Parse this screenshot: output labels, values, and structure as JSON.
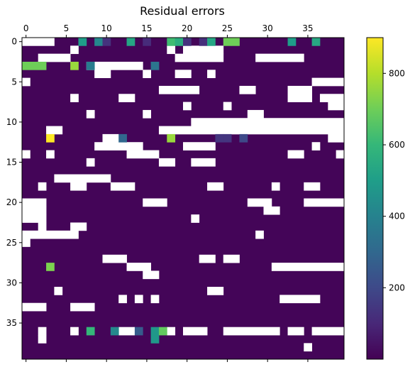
{
  "chart_data": {
    "type": "heatmap",
    "title": "Residual errors",
    "xlabel": "",
    "ylabel": "",
    "grid": false,
    "x_axis_position": "top",
    "xlim": [
      -0.5,
      39.5
    ],
    "ylim": [
      39.5,
      -0.5
    ],
    "x_ticks": [
      0,
      5,
      10,
      15,
      20,
      25,
      30,
      35
    ],
    "y_ticks": [
      0,
      5,
      10,
      15,
      20,
      25,
      30,
      35
    ],
    "colormap": "viridis",
    "colormap_stops": [
      "#440154",
      "#482878",
      "#3e4989",
      "#31688e",
      "#26828e",
      "#1f9e89",
      "#35b779",
      "#6ece58",
      "#b5de2b",
      "#fde725"
    ],
    "masked_color": "#ffffff",
    "vmin": 0,
    "vmax": 900,
    "colorbar_ticks": [
      200,
      400,
      600,
      800
    ],
    "background_value": 10,
    "nan_segments": [
      [
        0,
        0,
        3
      ],
      [
        1,
        6,
        6
      ],
      [
        1,
        18,
        18
      ],
      [
        1,
        20,
        24
      ],
      [
        2,
        2,
        5
      ],
      [
        2,
        19,
        24
      ],
      [
        2,
        29,
        34
      ],
      [
        3,
        8,
        14
      ],
      [
        4,
        9,
        10
      ],
      [
        4,
        15,
        15
      ],
      [
        4,
        19,
        20
      ],
      [
        4,
        23,
        23
      ],
      [
        5,
        0,
        0
      ],
      [
        5,
        36,
        39
      ],
      [
        6,
        17,
        21
      ],
      [
        6,
        27,
        28
      ],
      [
        6,
        33,
        35
      ],
      [
        7,
        6,
        6
      ],
      [
        7,
        12,
        13
      ],
      [
        7,
        33,
        35
      ],
      [
        7,
        37,
        39
      ],
      [
        8,
        20,
        20
      ],
      [
        8,
        25,
        25
      ],
      [
        8,
        38,
        39
      ],
      [
        9,
        8,
        8
      ],
      [
        9,
        15,
        15
      ],
      [
        9,
        28,
        29
      ],
      [
        10,
        21,
        39
      ],
      [
        11,
        3,
        4
      ],
      [
        11,
        17,
        39
      ],
      [
        12,
        10,
        11
      ],
      [
        12,
        38,
        39
      ],
      [
        13,
        9,
        14
      ],
      [
        13,
        20,
        23
      ],
      [
        13,
        36,
        36
      ],
      [
        14,
        0,
        0
      ],
      [
        14,
        3,
        3
      ],
      [
        14,
        13,
        16
      ],
      [
        14,
        33,
        34
      ],
      [
        14,
        39,
        39
      ],
      [
        15,
        8,
        8
      ],
      [
        15,
        17,
        18
      ],
      [
        15,
        21,
        23
      ],
      [
        17,
        4,
        10
      ],
      [
        18,
        2,
        2
      ],
      [
        18,
        6,
        7
      ],
      [
        18,
        11,
        13
      ],
      [
        18,
        23,
        24
      ],
      [
        18,
        31,
        31
      ],
      [
        18,
        35,
        36
      ],
      [
        20,
        0,
        2
      ],
      [
        20,
        15,
        17
      ],
      [
        20,
        28,
        30
      ],
      [
        20,
        35,
        39
      ],
      [
        21,
        0,
        2
      ],
      [
        21,
        30,
        31
      ],
      [
        22,
        0,
        2
      ],
      [
        22,
        21,
        21
      ],
      [
        23,
        2,
        2
      ],
      [
        23,
        6,
        7
      ],
      [
        24,
        0,
        6
      ],
      [
        24,
        29,
        29
      ],
      [
        25,
        0,
        0
      ],
      [
        27,
        10,
        12
      ],
      [
        27,
        22,
        23
      ],
      [
        27,
        25,
        26
      ],
      [
        28,
        13,
        15
      ],
      [
        28,
        31,
        39
      ],
      [
        29,
        15,
        16
      ],
      [
        31,
        4,
        4
      ],
      [
        31,
        23,
        24
      ],
      [
        32,
        12,
        12
      ],
      [
        32,
        14,
        14
      ],
      [
        32,
        16,
        16
      ],
      [
        32,
        32,
        36
      ],
      [
        33,
        0,
        2
      ],
      [
        33,
        6,
        8
      ],
      [
        36,
        2,
        2
      ],
      [
        36,
        6,
        6
      ],
      [
        36,
        12,
        13
      ],
      [
        36,
        18,
        18
      ],
      [
        36,
        20,
        22
      ],
      [
        36,
        25,
        31
      ],
      [
        36,
        33,
        34
      ],
      [
        36,
        36,
        39
      ],
      [
        37,
        2,
        2
      ],
      [
        38,
        35,
        35
      ]
    ],
    "highlighted_cells": [
      [
        0,
        7,
        500
      ],
      [
        0,
        9,
        420
      ],
      [
        0,
        10,
        130
      ],
      [
        0,
        13,
        530
      ],
      [
        0,
        15,
        110
      ],
      [
        0,
        18,
        620
      ],
      [
        0,
        19,
        560
      ],
      [
        0,
        20,
        130
      ],
      [
        0,
        22,
        120
      ],
      [
        0,
        23,
        530
      ],
      [
        0,
        25,
        700
      ],
      [
        0,
        26,
        700
      ],
      [
        0,
        33,
        500
      ],
      [
        0,
        36,
        540
      ],
      [
        3,
        0,
        700
      ],
      [
        3,
        1,
        700
      ],
      [
        3,
        2,
        700
      ],
      [
        3,
        6,
        760
      ],
      [
        3,
        8,
        380
      ],
      [
        3,
        16,
        350
      ],
      [
        12,
        3,
        900
      ],
      [
        12,
        12,
        300
      ],
      [
        12,
        18,
        760
      ],
      [
        12,
        24,
        140
      ],
      [
        12,
        25,
        140
      ],
      [
        12,
        27,
        200
      ],
      [
        28,
        3,
        720
      ],
      [
        36,
        8,
        600
      ],
      [
        36,
        11,
        420
      ],
      [
        36,
        14,
        260
      ],
      [
        36,
        16,
        480
      ],
      [
        36,
        17,
        680
      ],
      [
        37,
        16,
        480
      ]
    ]
  }
}
